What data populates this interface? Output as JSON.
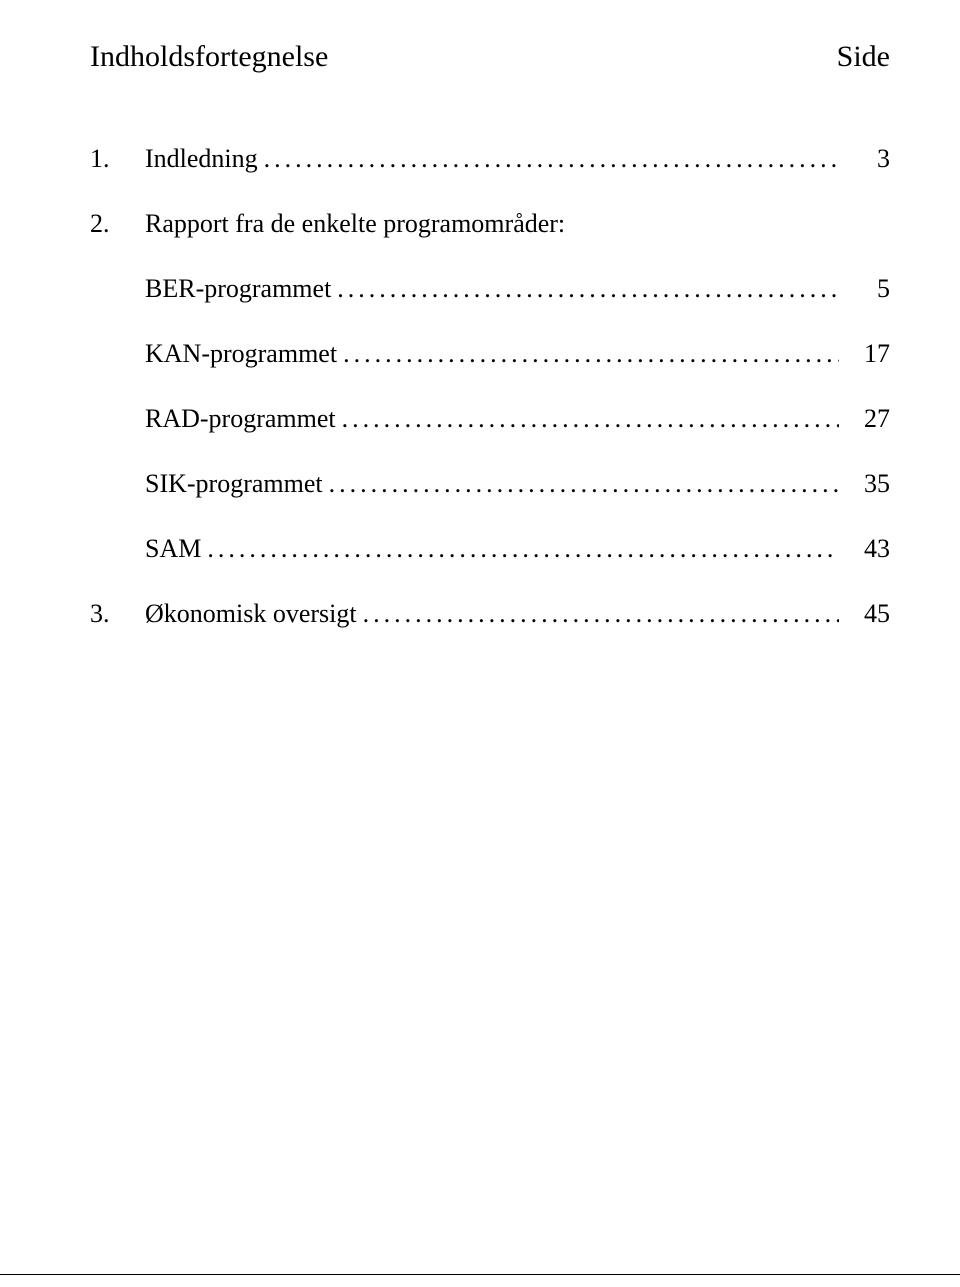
{
  "header": {
    "title": "Indholdsfortegnelse",
    "side": "Side"
  },
  "toc": {
    "items": [
      {
        "num": "1.",
        "label": "Indledning",
        "page": "3",
        "hasPage": true,
        "isSub": false
      },
      {
        "num": "2.",
        "label": "Rapport fra de enkelte programområder:",
        "page": "",
        "hasPage": false,
        "isSub": false
      },
      {
        "num": "",
        "label": "BER-programmet",
        "page": "5",
        "hasPage": true,
        "isSub": true
      },
      {
        "num": "",
        "label": "KAN-programmet",
        "page": "17",
        "hasPage": true,
        "isSub": true
      },
      {
        "num": "",
        "label": "RAD-programmet",
        "page": "27",
        "hasPage": true,
        "isSub": true
      },
      {
        "num": "",
        "label": "SIK-programmet",
        "page": "35",
        "hasPage": true,
        "isSub": true
      },
      {
        "num": "",
        "label": "SAM",
        "page": "43",
        "hasPage": true,
        "isSub": true
      },
      {
        "num": "3.",
        "label": "Økonomisk oversigt",
        "page": "45",
        "hasPage": true,
        "isSub": false
      }
    ]
  },
  "style": {
    "font_family": "Times New Roman",
    "title_fontsize": 30,
    "body_fontsize": 26,
    "text_color": "#000000",
    "background_color": "#ffffff",
    "leader_char": "."
  }
}
